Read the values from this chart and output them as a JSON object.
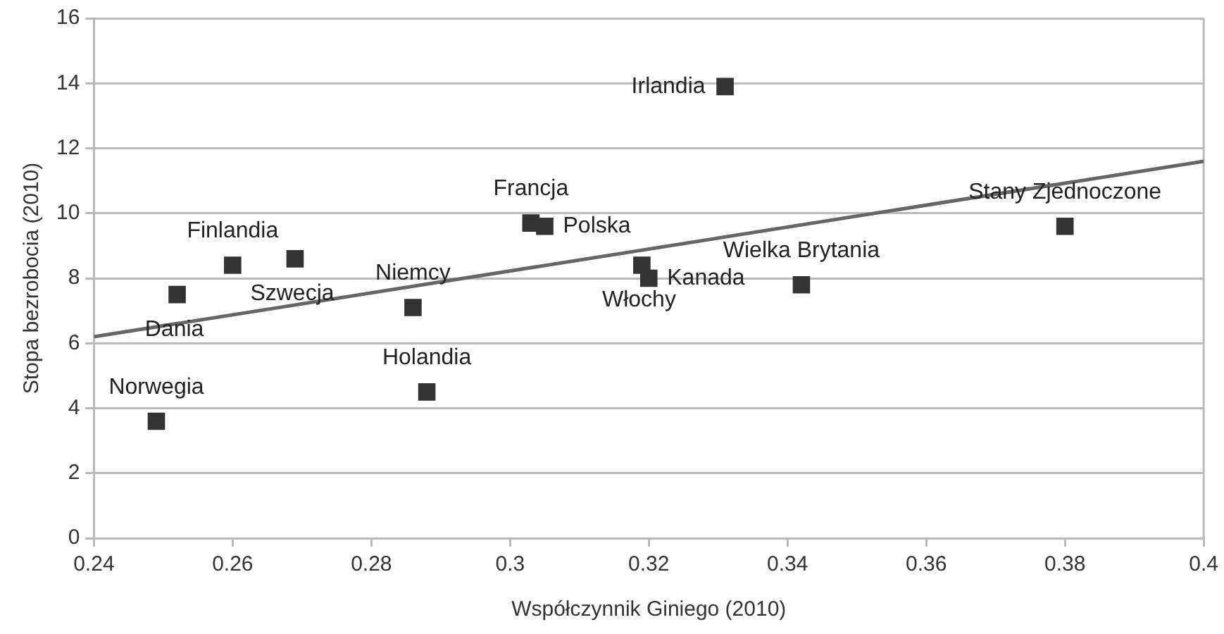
{
  "chart_data": {
    "type": "scatter",
    "xlabel": "Współczynnik Giniego (2010)",
    "ylabel": "Stopa bezrobocia (2010)",
    "xlim": [
      0.24,
      0.4
    ],
    "xticks": [
      0.24,
      0.26,
      0.28,
      0.3,
      0.32,
      0.34,
      0.36,
      0.38,
      0.4
    ],
    "ylim": [
      0,
      16
    ],
    "yticks": [
      0,
      2,
      4,
      6,
      8,
      10,
      12,
      14,
      16
    ],
    "grid": "y",
    "legend": false,
    "series": [
      {
        "type": "scatter",
        "color": "#333333",
        "marker": "square",
        "x": [
          0.249,
          0.252,
          0.26,
          0.269,
          0.286,
          0.288,
          0.303,
          0.305,
          0.319,
          0.32,
          0.331,
          0.342,
          0.38
        ],
        "values": [
          3.6,
          7.5,
          8.4,
          8.6,
          7.1,
          4.5,
          9.7,
          9.6,
          8.4,
          8.0,
          13.9,
          7.8,
          9.6
        ]
      },
      {
        "type": "line",
        "color": "#666666",
        "marker": "none",
        "x": [
          0.24,
          0.4
        ],
        "values": [
          6.2,
          11.6
        ]
      }
    ],
    "annotations": [
      {
        "text": "Norwegia",
        "x": 0.249,
        "y": 3.6
      },
      {
        "text": "Dania",
        "x": 0.252,
        "y": 7.5
      },
      {
        "text": "Finlandia",
        "x": 0.26,
        "y": 8.4
      },
      {
        "text": "Szwecja",
        "x": 0.269,
        "y": 8.6
      },
      {
        "text": "Niemcy",
        "x": 0.286,
        "y": 7.1
      },
      {
        "text": "Holandia",
        "x": 0.288,
        "y": 4.5
      },
      {
        "text": "Francja",
        "x": 0.303,
        "y": 9.7
      },
      {
        "text": "Polska",
        "x": 0.305,
        "y": 9.6
      },
      {
        "text": "Włochy",
        "x": 0.319,
        "y": 8.4
      },
      {
        "text": "Kanada",
        "x": 0.32,
        "y": 8.0
      },
      {
        "text": "Irlandia",
        "x": 0.331,
        "y": 13.9
      },
      {
        "text": "Wielka Brytania",
        "x": 0.342,
        "y": 7.8
      },
      {
        "text": "Stany Zjednoczone",
        "x": 0.38,
        "y": 9.6
      }
    ]
  }
}
